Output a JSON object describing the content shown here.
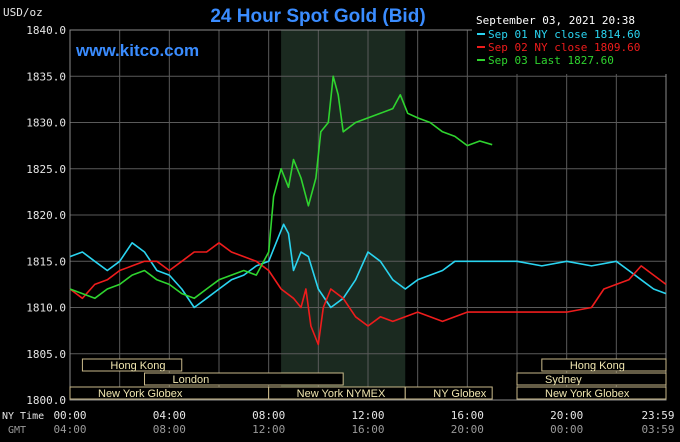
{
  "chart_data": {
    "type": "line",
    "title": "24 Hour Spot Gold (Bid)",
    "unit_label": "USD/oz",
    "watermark": "www.kitco.com",
    "date_label": "September 03, 2021 20:38",
    "ylim": [
      1800,
      1840
    ],
    "y_ticks": [
      "1840.0",
      "1835.0",
      "1830.0",
      "1825.0",
      "1820.0",
      "1815.0",
      "1810.0",
      "1805.0",
      "1800.0"
    ],
    "x_tick_labels_ny": [
      "00:00",
      "04:00",
      "08:00",
      "12:00",
      "16:00",
      "20:00",
      "23:59"
    ],
    "x_tick_labels_gmt": [
      "04:00",
      "08:00",
      "12:00",
      "16:00",
      "20:00",
      "00:00",
      "03:59"
    ],
    "row_label_ny": "NY Time",
    "row_label_gmt": "GMT",
    "grid": true,
    "legend_position": "top-right",
    "sessions": [
      {
        "label": "Hong Kong",
        "start": 0.5,
        "end": 4.5,
        "row": 1
      },
      {
        "label": "London",
        "start": 3.0,
        "end": 11.0,
        "row": 2
      },
      {
        "label": "New York Globex",
        "start": 0.0,
        "end": 8.0,
        "row": 3
      },
      {
        "label": "New York NYMEX",
        "start": 8.0,
        "end": 13.5,
        "row": 3
      },
      {
        "label": "NY Globex",
        "start": 13.5,
        "end": 17.0,
        "row": 3
      },
      {
        "label": "Hong Kong",
        "start": 19.0,
        "end": 24.0,
        "row": 1
      },
      {
        "label": "Sydney",
        "start": 18.0,
        "end": 24.0,
        "row": 2
      },
      {
        "label": "New York Globex",
        "start": 18.0,
        "end": 24.0,
        "row": 3
      }
    ],
    "series": [
      {
        "name": "Sep 01 NY close 1814.60",
        "color": "#2ad4f0",
        "points": [
          [
            0,
            1815.5
          ],
          [
            0.5,
            1816
          ],
          [
            1,
            1815
          ],
          [
            1.5,
            1814
          ],
          [
            2,
            1815
          ],
          [
            2.5,
            1817
          ],
          [
            3,
            1816
          ],
          [
            3.5,
            1814
          ],
          [
            4,
            1813.5
          ],
          [
            4.5,
            1812
          ],
          [
            5,
            1810
          ],
          [
            5.5,
            1811
          ],
          [
            6,
            1812
          ],
          [
            6.5,
            1813
          ],
          [
            7,
            1813.5
          ],
          [
            7.5,
            1814.5
          ],
          [
            8,
            1815
          ],
          [
            8.3,
            1817
          ],
          [
            8.6,
            1819
          ],
          [
            8.8,
            1818
          ],
          [
            9,
            1814
          ],
          [
            9.3,
            1816
          ],
          [
            9.6,
            1815.5
          ],
          [
            10,
            1812
          ],
          [
            10.5,
            1810
          ],
          [
            11,
            1811
          ],
          [
            11.5,
            1813
          ],
          [
            12,
            1816
          ],
          [
            12.5,
            1815
          ],
          [
            13,
            1813
          ],
          [
            13.5,
            1812
          ],
          [
            14,
            1813
          ],
          [
            14.5,
            1813.5
          ],
          [
            15,
            1814
          ],
          [
            15.5,
            1815
          ],
          [
            16,
            1815
          ],
          [
            17,
            1815
          ],
          [
            18,
            1815
          ],
          [
            19,
            1814.5
          ],
          [
            20,
            1815
          ],
          [
            21,
            1814.5
          ],
          [
            22,
            1815
          ],
          [
            22.5,
            1814
          ],
          [
            23,
            1813
          ],
          [
            23.5,
            1812
          ],
          [
            24,
            1811.5
          ]
        ]
      },
      {
        "name": "Sep 02 NY close 1809.60",
        "color": "#ee1c1c",
        "points": [
          [
            0,
            1812
          ],
          [
            0.5,
            1811
          ],
          [
            1,
            1812.5
          ],
          [
            1.5,
            1813
          ],
          [
            2,
            1814
          ],
          [
            2.5,
            1814.5
          ],
          [
            3,
            1815
          ],
          [
            3.5,
            1815
          ],
          [
            4,
            1814
          ],
          [
            4.5,
            1815
          ],
          [
            5,
            1816
          ],
          [
            5.5,
            1816
          ],
          [
            6,
            1817
          ],
          [
            6.5,
            1816
          ],
          [
            7,
            1815.5
          ],
          [
            7.5,
            1815
          ],
          [
            8,
            1814
          ],
          [
            8.5,
            1812
          ],
          [
            9,
            1811
          ],
          [
            9.3,
            1810
          ],
          [
            9.5,
            1812
          ],
          [
            9.7,
            1808
          ],
          [
            10,
            1806
          ],
          [
            10.2,
            1810
          ],
          [
            10.5,
            1812
          ],
          [
            11,
            1811
          ],
          [
            11.5,
            1809
          ],
          [
            12,
            1808
          ],
          [
            12.5,
            1809
          ],
          [
            13,
            1808.5
          ],
          [
            13.5,
            1809
          ],
          [
            14,
            1809.5
          ],
          [
            15,
            1808.5
          ],
          [
            16,
            1809.5
          ],
          [
            17,
            1809.5
          ],
          [
            18,
            1809.5
          ],
          [
            19,
            1809.5
          ],
          [
            20,
            1809.5
          ],
          [
            21,
            1810
          ],
          [
            21.5,
            1812
          ],
          [
            22,
            1812.5
          ],
          [
            22.5,
            1813
          ],
          [
            23,
            1814.5
          ],
          [
            23.5,
            1813.5
          ],
          [
            24,
            1812.5
          ]
        ]
      },
      {
        "name": "Sep 03 Last 1827.60",
        "color": "#2fd42f",
        "points": [
          [
            0,
            1812
          ],
          [
            0.5,
            1811.5
          ],
          [
            1,
            1811
          ],
          [
            1.5,
            1812
          ],
          [
            2,
            1812.5
          ],
          [
            2.5,
            1813.5
          ],
          [
            3,
            1814
          ],
          [
            3.5,
            1813
          ],
          [
            4,
            1812.5
          ],
          [
            4.5,
            1811.5
          ],
          [
            5,
            1811
          ],
          [
            5.5,
            1812
          ],
          [
            6,
            1813
          ],
          [
            6.5,
            1813.5
          ],
          [
            7,
            1814
          ],
          [
            7.5,
            1813.5
          ],
          [
            8,
            1816
          ],
          [
            8.2,
            1822
          ],
          [
            8.5,
            1825
          ],
          [
            8.8,
            1823
          ],
          [
            9,
            1826
          ],
          [
            9.3,
            1824
          ],
          [
            9.6,
            1821
          ],
          [
            9.9,
            1824
          ],
          [
            10.1,
            1829
          ],
          [
            10.4,
            1830
          ],
          [
            10.6,
            1835
          ],
          [
            10.8,
            1833
          ],
          [
            11,
            1829
          ],
          [
            11.5,
            1830
          ],
          [
            12,
            1830.5
          ],
          [
            12.5,
            1831
          ],
          [
            13,
            1831.5
          ],
          [
            13.3,
            1833
          ],
          [
            13.6,
            1831
          ],
          [
            14,
            1830.5
          ],
          [
            14.5,
            1830
          ],
          [
            15,
            1829
          ],
          [
            15.5,
            1828.5
          ],
          [
            16,
            1827.5
          ],
          [
            16.5,
            1828
          ],
          [
            17,
            1827.6
          ]
        ]
      }
    ]
  }
}
